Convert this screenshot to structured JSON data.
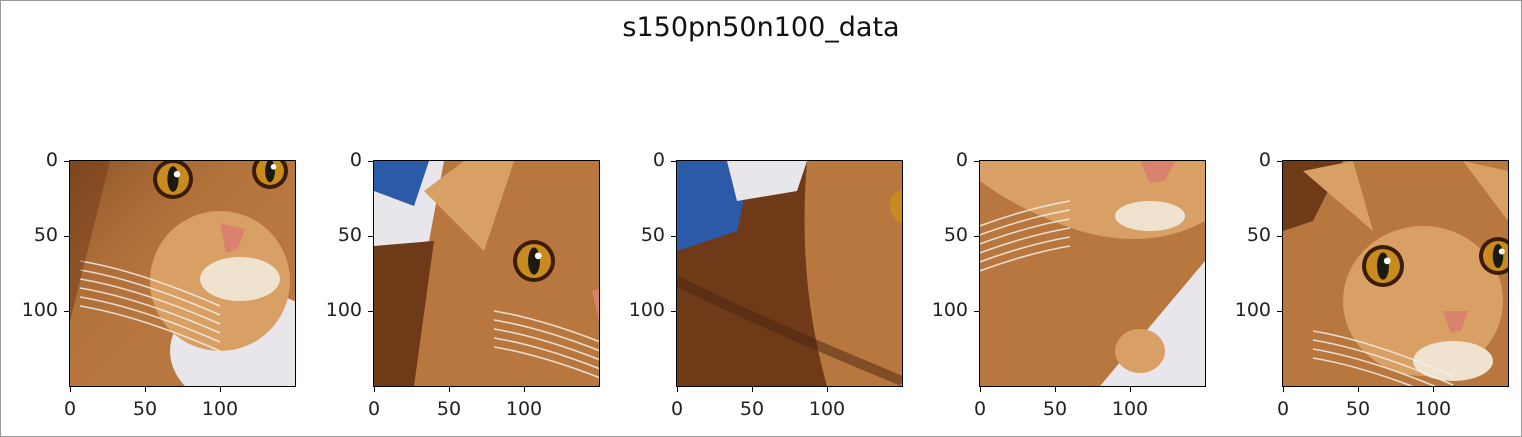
{
  "chart_data": {
    "type": "image-grid",
    "title": "s150pn50n100_data",
    "panels": [
      {
        "name": "crop-1",
        "description_icon": "cat-face-crop",
        "xticks": [
          "0",
          "50",
          "100"
        ],
        "yticks": [
          "0",
          "50",
          "100"
        ],
        "xlim": [
          0,
          150
        ],
        "ylim": [
          150,
          0
        ]
      },
      {
        "name": "crop-2",
        "description_icon": "cat-face-crop",
        "xticks": [
          "0",
          "50",
          "100"
        ],
        "yticks": [
          "0",
          "50",
          "100"
        ],
        "xlim": [
          0,
          150
        ],
        "ylim": [
          150,
          0
        ]
      },
      {
        "name": "crop-3",
        "description_icon": "cat-body-crop",
        "xticks": [
          "0",
          "50",
          "100"
        ],
        "yticks": [
          "0",
          "50",
          "100"
        ],
        "xlim": [
          0,
          150
        ],
        "ylim": [
          150,
          0
        ]
      },
      {
        "name": "crop-4",
        "description_icon": "cat-chin-crop",
        "xticks": [
          "0",
          "50",
          "100"
        ],
        "yticks": [
          "0",
          "50",
          "100"
        ],
        "xlim": [
          0,
          150
        ],
        "ylim": [
          150,
          0
        ]
      },
      {
        "name": "crop-5",
        "description_icon": "cat-face-crop",
        "xticks": [
          "0",
          "50",
          "100"
        ],
        "yticks": [
          "0",
          "50",
          "100"
        ],
        "xlim": [
          0,
          150
        ],
        "ylim": [
          150,
          0
        ]
      }
    ]
  },
  "colors": {
    "fur_light": "#d9a066",
    "fur_mid": "#b8773f",
    "fur_dark": "#6e3a18",
    "eye": "#c98a1e",
    "nose": "#d9826e",
    "blue_bg": "#2a5aa8",
    "white_bg": "#e8e6ea"
  }
}
